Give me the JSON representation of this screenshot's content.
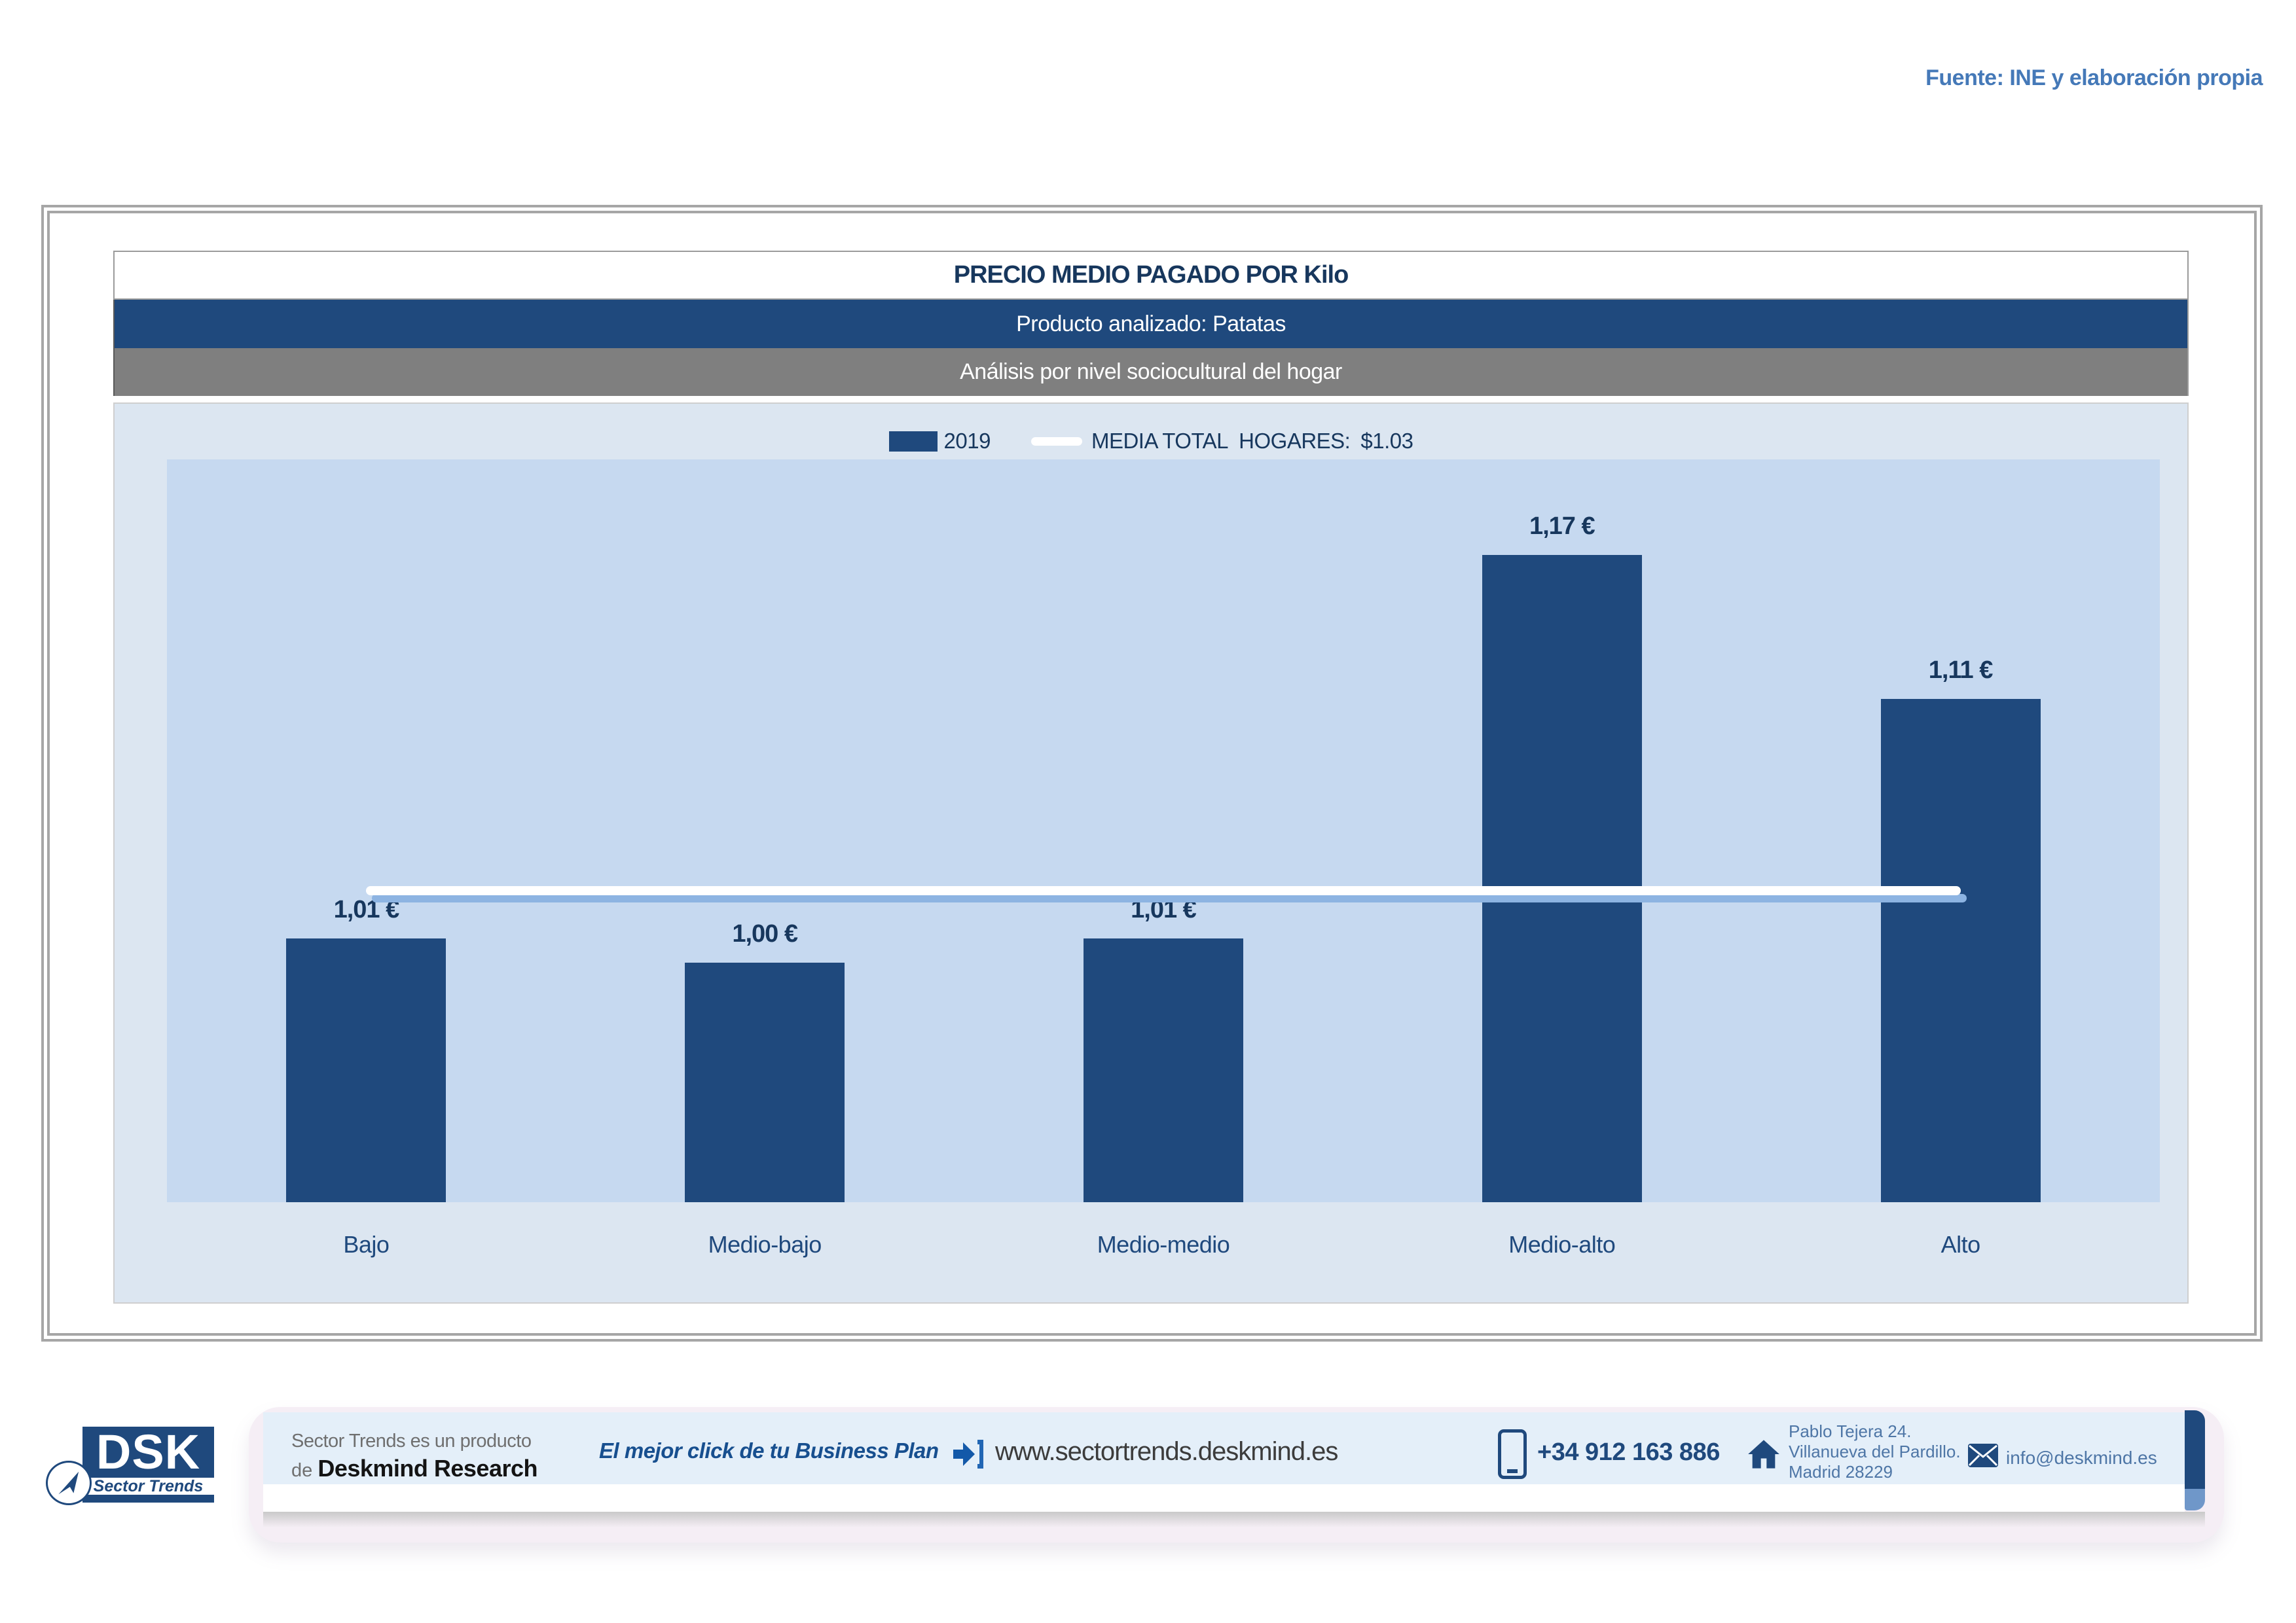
{
  "fuente": "Fuente: INE y elaboración propia",
  "report": {
    "title": "PRECIO MEDIO PAGADO POR Kilo",
    "subtitle_product": "Producto analizado: Patatas",
    "subtitle_analysis": "Análisis por nivel sociocultural del hogar"
  },
  "chart_data": {
    "type": "bar",
    "title": "PRECIO MEDIO PAGADO POR Kilo",
    "subtitle": "Producto analizado: Patatas — Análisis por nivel sociocultural del hogar",
    "categories": [
      "Bajo",
      "Medio-bajo",
      "Medio-medio",
      "Medio-alto",
      "Alto"
    ],
    "series": [
      {
        "name": "2019",
        "values": [
          1.01,
          1.0,
          1.01,
          1.17,
          1.11
        ]
      }
    ],
    "value_labels": [
      "1,01 €",
      "1,00 €",
      "1,01 €",
      "1,17 €",
      "1,11 €"
    ],
    "media_total_hogares": 1.03,
    "legend": {
      "series_label": "2019",
      "media_label": "MEDIA TOTAL  HOGARES:",
      "media_value": "$1.03"
    },
    "xlabel": "",
    "ylabel": "",
    "ylim": [
      0.9,
      1.21
    ],
    "grid": false,
    "legend_position": "top-center"
  },
  "colors": {
    "accent_navy": "#1F497D",
    "band_gray": "#7F7F7F",
    "container_bg": "#DCE6F1",
    "plot_bg": "#C6D9F0",
    "media_line": "#FFFFFF",
    "media_line_shadow": "#8DB4E2",
    "text_navy": "#17375D",
    "fuente_blue": "#4579B8"
  },
  "footer": {
    "logo": {
      "acronym": "DSK",
      "brand": "Sector Trends"
    },
    "product_line1": "Sector Trends es un producto",
    "product_line2_prefix": "de ",
    "product_line2_brand": "Deskmind Research",
    "slogan": "El mejor click de tu Business Plan",
    "website": "www.sectortrends.deskmind.es",
    "phone": "+34 912 163 886",
    "address_lines": [
      "Pablo Tejera 24.",
      "Villanueva del Pardillo.",
      "Madrid 28229"
    ],
    "email": "info@deskmind.es"
  }
}
